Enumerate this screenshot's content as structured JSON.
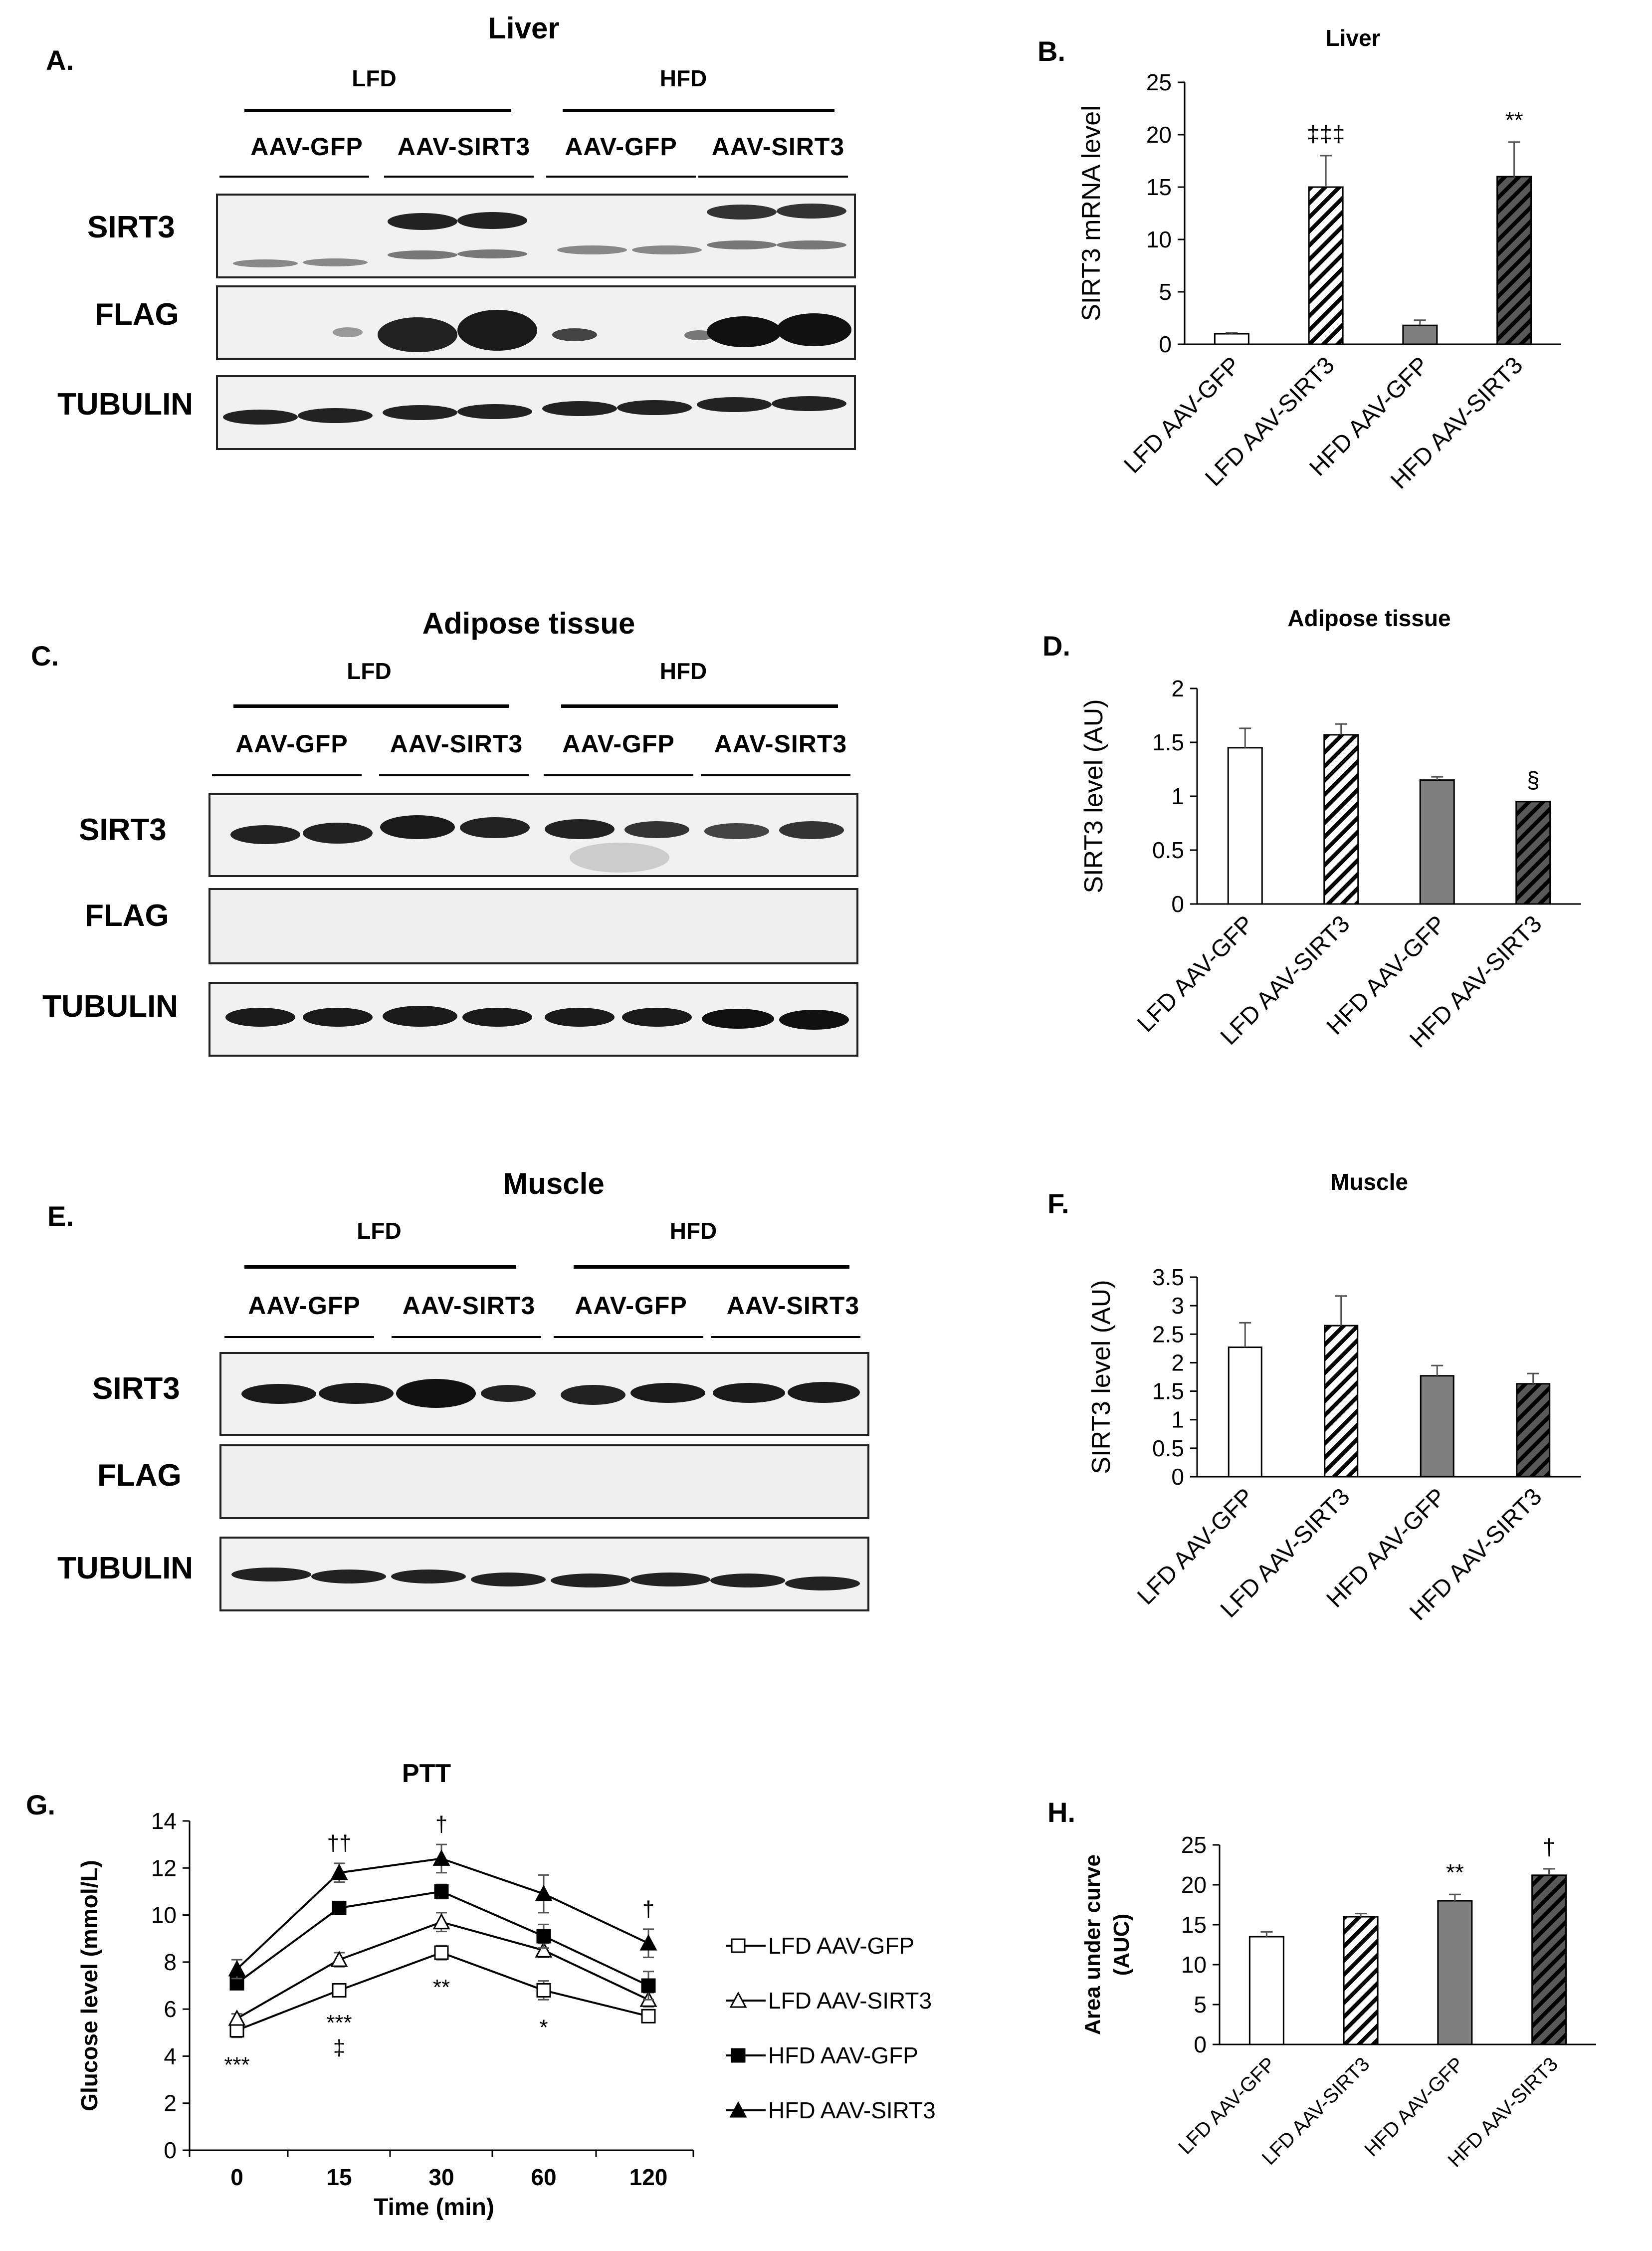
{
  "panels": {
    "A": {
      "label": "A.",
      "title": "Liver"
    },
    "B": {
      "label": "B."
    },
    "C": {
      "label": "C.",
      "title": "Adipose tissue"
    },
    "D": {
      "label": "D."
    },
    "E": {
      "label": "E.",
      "title": "Muscle"
    },
    "F": {
      "label": "F."
    },
    "G": {
      "label": "G."
    },
    "H": {
      "label": "H."
    }
  },
  "blot": {
    "diets": [
      "LFD",
      "HFD"
    ],
    "constructs": [
      "AAV-GFP",
      "AAV-SIRT3",
      "AAV-GFP",
      "AAV-SIRT3"
    ],
    "rows": [
      "SIRT3",
      "FLAG",
      "TUBULIN"
    ]
  },
  "colors": {
    "white_bar": "#ffffff",
    "hatch_light": "#ffffff",
    "grey_bar": "#7f7f7f",
    "hatch_dark": "#595959",
    "stroke": "#000000"
  },
  "chart_data": [
    {
      "id": "B",
      "type": "bar",
      "title": "Liver",
      "ylabel": "SIRT3 mRNA level",
      "xlabel": "",
      "categories": [
        "LFD AAV-GFP",
        "LFD AAV-SIRT3",
        "HFD AAV-GFP",
        "HFD AAV-SIRT3"
      ],
      "values": [
        1.0,
        15.0,
        1.8,
        16.0
      ],
      "errors": [
        0.1,
        3.0,
        0.5,
        3.3
      ],
      "annotations": [
        "",
        "‡‡‡",
        "",
        "**"
      ],
      "ylim": [
        0,
        25
      ],
      "yticks": [
        0,
        5,
        10,
        15,
        20,
        25
      ],
      "styles": [
        "white",
        "hatch-light",
        "grey",
        "hatch-dark"
      ]
    },
    {
      "id": "D",
      "type": "bar",
      "title": "Adipose tissue",
      "ylabel": "SIRT3 level (AU)",
      "xlabel": "",
      "categories": [
        "LFD AAV-GFP",
        "LFD AAV-SIRT3",
        "HFD AAV-GFP",
        "HFD AAV-SIRT3"
      ],
      "values": [
        1.45,
        1.57,
        1.15,
        0.95
      ],
      "errors": [
        0.18,
        0.1,
        0.03,
        0.0
      ],
      "annotations": [
        "",
        "",
        "",
        "§"
      ],
      "ylim": [
        0,
        2
      ],
      "yticks": [
        0,
        0.5,
        1,
        1.5,
        2
      ],
      "styles": [
        "white",
        "hatch-light",
        "grey",
        "hatch-dark"
      ]
    },
    {
      "id": "F",
      "type": "bar",
      "title": "Muscle",
      "ylabel": "SIRT3 level (AU)",
      "xlabel": "",
      "categories": [
        "LFD AAV-GFP",
        "LFD AAV-SIRT3",
        "HFD AAV-GFP",
        "HFD AAV-SIRT3"
      ],
      "values": [
        2.27,
        2.65,
        1.77,
        1.63
      ],
      "errors": [
        0.43,
        0.52,
        0.18,
        0.18
      ],
      "annotations": [
        "",
        "",
        "",
        ""
      ],
      "ylim": [
        0,
        3.5
      ],
      "yticks": [
        0,
        0.5,
        1,
        1.5,
        2,
        2.5,
        3,
        3.5
      ],
      "styles": [
        "white",
        "hatch-light",
        "grey",
        "hatch-dark"
      ]
    },
    {
      "id": "G",
      "type": "line",
      "title": "PTT",
      "xlabel": "Time (min)",
      "ylabel": "Glucose level (mmol/L)",
      "x": [
        "0",
        "15",
        "30",
        "60",
        "120"
      ],
      "ylim": [
        0,
        14
      ],
      "yticks": [
        0,
        2,
        4,
        6,
        8,
        10,
        12,
        14
      ],
      "series": [
        {
          "name": "LFD AAV-GFP",
          "marker": "open-square",
          "values": [
            5.1,
            6.8,
            8.4,
            6.8,
            5.7
          ],
          "errors": [
            0.3,
            0.2,
            0.3,
            0.4,
            0.2
          ]
        },
        {
          "name": "LFD AAV-SIRT3",
          "marker": "open-triangle",
          "values": [
            5.6,
            8.1,
            9.7,
            8.5,
            6.4
          ],
          "errors": [
            0.2,
            0.3,
            0.4,
            0.3,
            0.3
          ]
        },
        {
          "name": "HFD AAV-GFP",
          "marker": "filled-square",
          "values": [
            7.1,
            10.3,
            11.0,
            9.1,
            7.0
          ],
          "errors": [
            0.2,
            0.2,
            0.3,
            0.5,
            0.6
          ]
        },
        {
          "name": "HFD AAV-SIRT3",
          "marker": "filled-triangle",
          "values": [
            7.7,
            11.8,
            12.4,
            10.9,
            8.8
          ],
          "errors": [
            0.4,
            0.4,
            0.6,
            0.8,
            0.6
          ]
        }
      ],
      "annotations": [
        {
          "x": "0",
          "below": [
            "***"
          ],
          "above": []
        },
        {
          "x": "15",
          "below": [
            "***",
            "‡"
          ],
          "above": [
            "††"
          ]
        },
        {
          "x": "30",
          "below": [
            "**"
          ],
          "above": [
            "†"
          ]
        },
        {
          "x": "60",
          "below": [
            "*"
          ],
          "above": []
        },
        {
          "x": "120",
          "below": [],
          "above": [
            "†"
          ]
        }
      ],
      "legend_position": "right"
    },
    {
      "id": "H",
      "type": "bar",
      "title": "",
      "ylabel": "Area under curve (AUC)",
      "xlabel": "",
      "categories": [
        "LFD AAV-GFP",
        "LFD AAV-SIRT3",
        "HFD AAV-GFP",
        "HFD AAV-SIRT3"
      ],
      "values": [
        13.5,
        16.0,
        18.0,
        21.2
      ],
      "errors": [
        0.6,
        0.4,
        0.8,
        0.8
      ],
      "annotations": [
        "",
        "",
        "**",
        "†"
      ],
      "ylim": [
        0,
        25
      ],
      "yticks": [
        0,
        5,
        10,
        15,
        20,
        25
      ],
      "styles": [
        "white",
        "hatch-light",
        "grey",
        "hatch-dark"
      ]
    }
  ]
}
